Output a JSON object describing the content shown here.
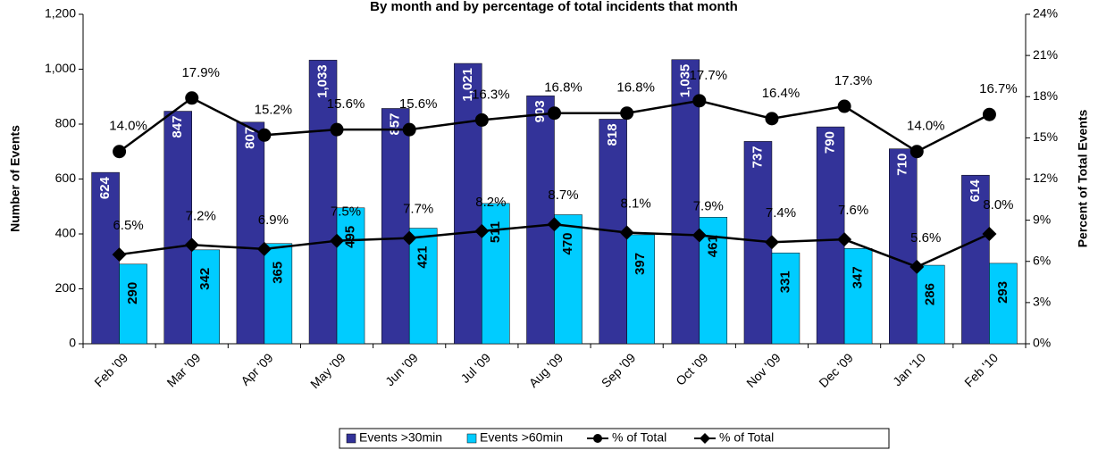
{
  "chart_data": {
    "type": "bar",
    "title": "By month and by percentage of total incidents that month",
    "y_label": "Number of Events",
    "y2_label": "Percent of Total Events",
    "categories": [
      "Feb '09",
      "Mar '09",
      "Apr '09",
      "May '09",
      "Jun '09",
      "Jul '09",
      "Aug '09",
      "Sep '09",
      "Oct '09",
      "Nov '09",
      "Dec '09",
      "Jan '10",
      "Feb '10"
    ],
    "series": [
      {
        "name": "Events >30min",
        "type": "bar",
        "color": "#333399",
        "values": [
          624,
          847,
          807,
          1033,
          857,
          1021,
          903,
          818,
          1035,
          737,
          790,
          710,
          614
        ],
        "value_labels": [
          "624",
          "847",
          "807",
          "1,033",
          "857",
          "1,021",
          "903",
          "818",
          "1,035",
          "737",
          "790",
          "710",
          "614"
        ]
      },
      {
        "name": "Events >60min",
        "type": "bar",
        "color": "#00ccff",
        "values": [
          290,
          342,
          365,
          495,
          421,
          511,
          470,
          397,
          461,
          331,
          347,
          286,
          293
        ]
      },
      {
        "name": "% of Total",
        "type": "line",
        "axis": "y2",
        "color": "#000000",
        "marker": "circle",
        "values": [
          14.0,
          17.9,
          15.2,
          15.6,
          15.6,
          16.3,
          16.8,
          16.8,
          17.7,
          16.4,
          17.3,
          14.0,
          16.7
        ],
        "value_labels": [
          "14.0%",
          "17.9%",
          "15.2%",
          "15.6%",
          "15.6%",
          "16.3%",
          "16.8%",
          "16.8%",
          "17.7%",
          "16.4%",
          "17.3%",
          "14.0%",
          "16.7%"
        ]
      },
      {
        "name": "% of Total",
        "type": "line",
        "axis": "y2",
        "color": "#000000",
        "marker": "diamond",
        "values": [
          6.5,
          7.2,
          6.9,
          7.5,
          7.7,
          8.2,
          8.7,
          8.1,
          7.9,
          7.4,
          7.6,
          5.6,
          8.0
        ],
        "value_labels": [
          "6.5%",
          "7.2%",
          "6.9%",
          "7.5%",
          "7.7%",
          "8.2%",
          "8.7%",
          "8.1%",
          "7.9%",
          "7.4%",
          "7.6%",
          "5.6%",
          "8.0%"
        ]
      }
    ],
    "ylim": [
      0,
      1200
    ],
    "yticks": [
      0,
      200,
      400,
      600,
      800,
      {
        "value": 1000,
        "label": "1,000"
      },
      {
        "value": 1200,
        "label": "1,200"
      }
    ],
    "y2lim": [
      0,
      24
    ],
    "y2ticks": [
      {
        "value": 0,
        "label": "0%"
      },
      {
        "value": 3,
        "label": "3%"
      },
      {
        "value": 6,
        "label": "6%"
      },
      {
        "value": 9,
        "label": "9%"
      },
      {
        "value": 12,
        "label": "12%"
      },
      {
        "value": 15,
        "label": "15%"
      },
      {
        "value": 18,
        "label": "18%"
      },
      {
        "value": 21,
        "label": "21%"
      },
      {
        "value": 24,
        "label": "24%"
      }
    ],
    "grid": false,
    "legend": "bottom"
  }
}
